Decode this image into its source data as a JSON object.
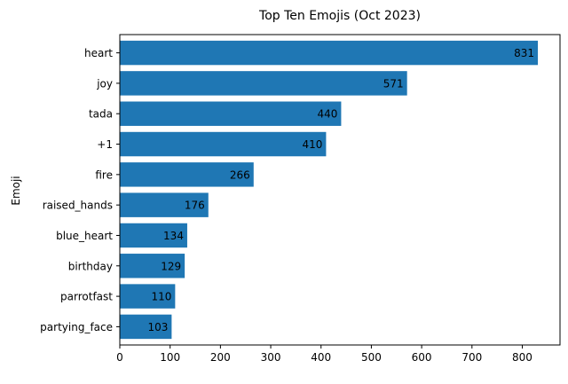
{
  "chart_data": {
    "type": "bar",
    "orientation": "horizontal",
    "title": "Top Ten Emojis (Oct 2023)",
    "xlabel": "",
    "ylabel": "Emoji",
    "categories": [
      "heart",
      "joy",
      "tada",
      "+1",
      "fire",
      "raised_hands",
      "blue_heart",
      "birthday",
      "parrotfast",
      "partying_face"
    ],
    "values": [
      831,
      571,
      440,
      410,
      266,
      176,
      134,
      129,
      110,
      103
    ],
    "xlim": [
      0,
      875
    ],
    "xticks": [
      0,
      100,
      200,
      300,
      400,
      500,
      600,
      700,
      800
    ],
    "grid": false,
    "legend": "none",
    "data_labels": true,
    "bar_color": "#1f77b4"
  }
}
